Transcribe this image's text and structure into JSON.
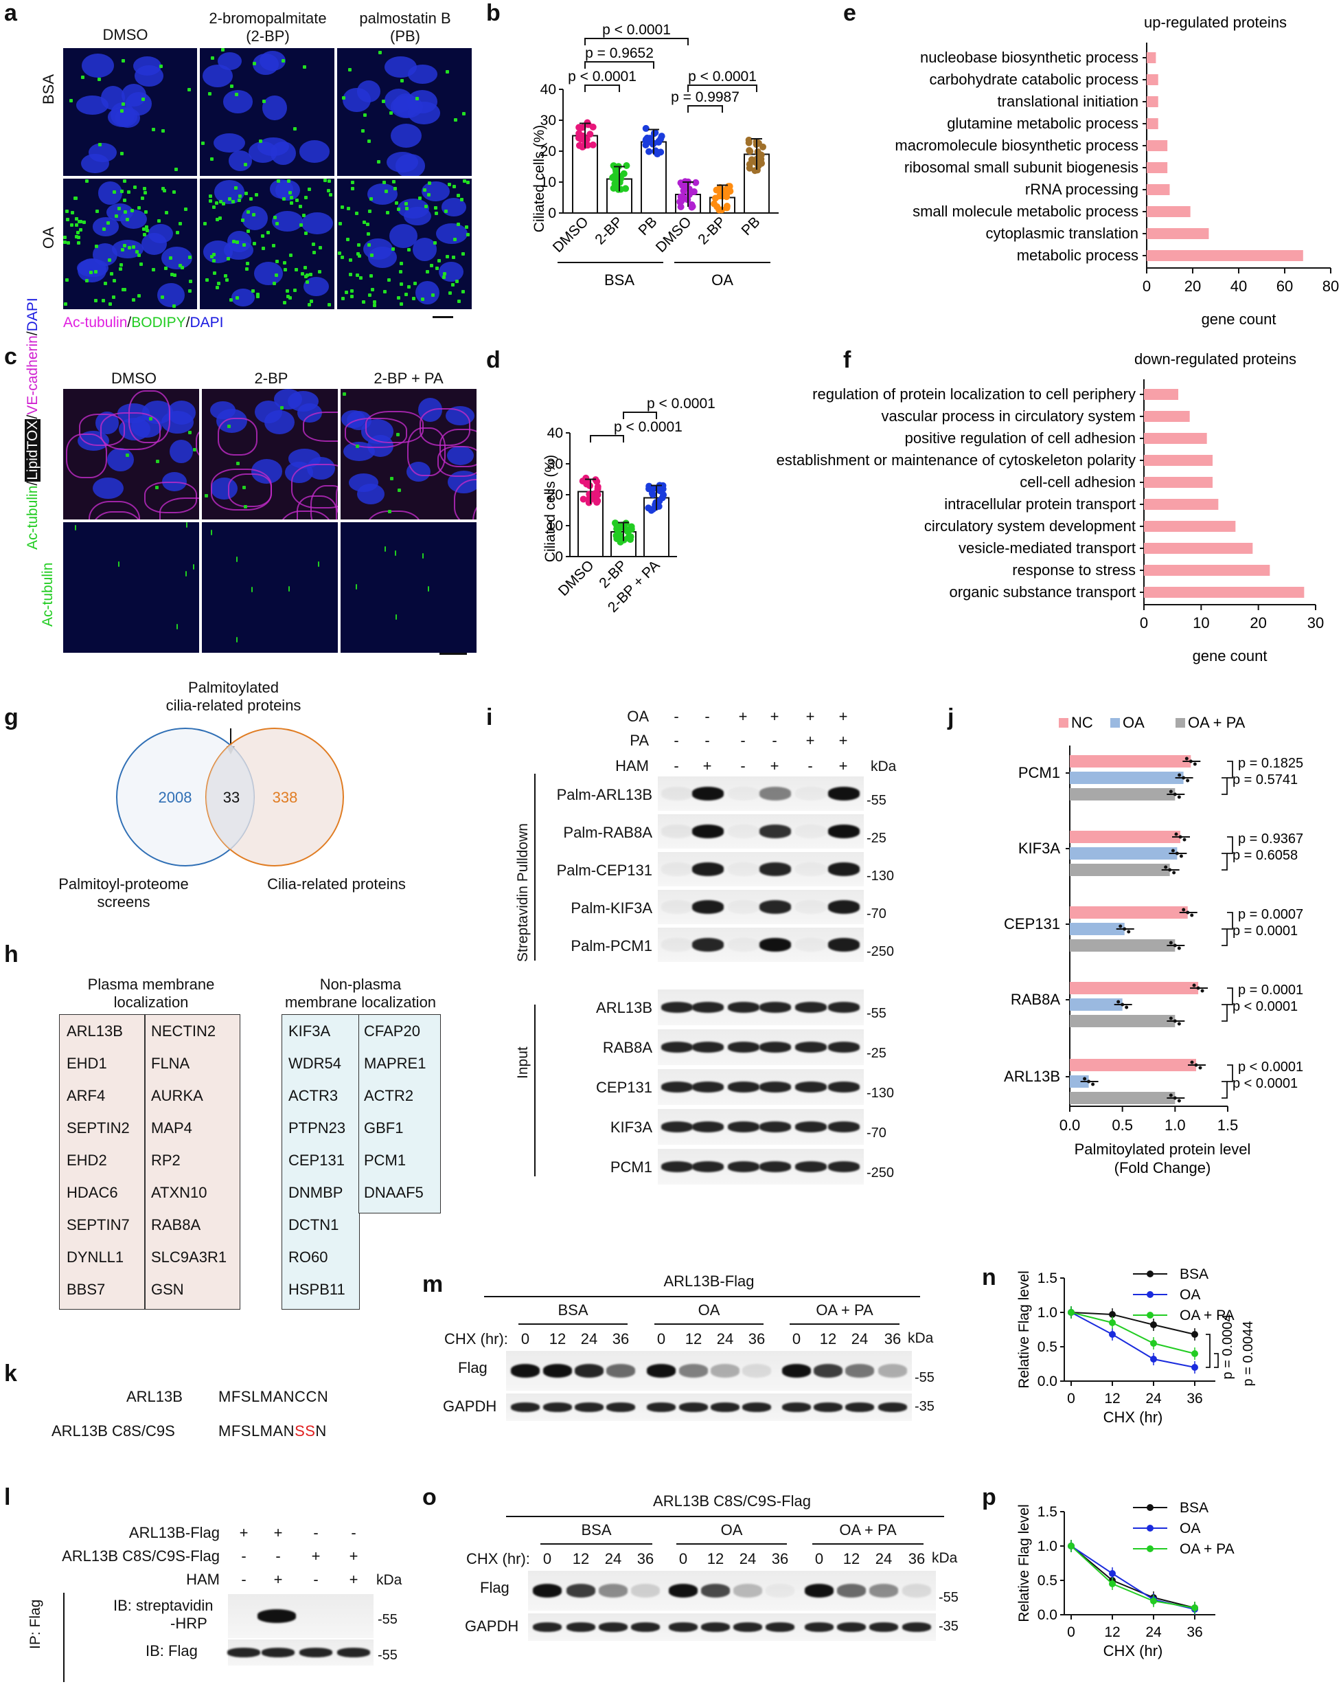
{
  "panel_a": {
    "letter": "a",
    "columns": [
      "DMSO",
      "2-bromopalmitate\n(2-BP)",
      "palmostatin B\n(PB)"
    ],
    "col1": "DMSO",
    "col2_l1": "2-bromopalmitate",
    "col2_l2": "(2-BP)",
    "col3_l1": "palmostatin B",
    "col3_l2": "(PB)",
    "rows": [
      "BSA",
      "OA"
    ],
    "legend_ac": "Ac-tubulin",
    "legend_slash1": "/",
    "legend_bodipy": "BODIPY",
    "legend_slash2": "/",
    "legend_dapi": "DAPI",
    "colors": {
      "ac": "#e020e0",
      "bodipy": "#22cc22",
      "dapi": "#1a1ae0"
    }
  },
  "panel_b": {
    "letter": "b",
    "ylabel": "Ciliated cells (%)",
    "yticks": [
      "0",
      "10",
      "20",
      "30",
      "40"
    ],
    "xcats": [
      "DMSO",
      "2-BP",
      "PB",
      "DMSO",
      "2-BP",
      "PB"
    ],
    "group1": "BSA",
    "group2": "OA",
    "p1": "p < 0.0001",
    "p2": "p = 0.9652",
    "p3": "p < 0.0001",
    "p4": "p < 0.0001",
    "p5": "p = 0.9987"
  },
  "panel_c": {
    "letter": "c",
    "columns": [
      "DMSO",
      "2-BP",
      "2-BP + PA"
    ],
    "row1_a": "Ac-tubulin",
    "row1_b": "/",
    "row1_c": "LipidTOX",
    "row1_d": "/",
    "row1_e": "VE-cadherin",
    "row1_f": "/",
    "row1_g": "DAPI",
    "row2": "Ac-tubulin"
  },
  "panel_d": {
    "letter": "d",
    "ylabel": "Ciliated cells (%)",
    "yticks": [
      "0",
      "10",
      "20",
      "30",
      "40"
    ],
    "xcats": [
      "DMSO",
      "2-BP",
      "2-BP + PA"
    ],
    "p1": "p < 0.0001",
    "p2": "p < 0.0001"
  },
  "panel_e": {
    "letter": "e",
    "title": "up-regulated proteins",
    "xlabel": "gene count",
    "xticks": [
      "0",
      "20",
      "40",
      "60",
      "80"
    ]
  },
  "panel_f": {
    "letter": "f",
    "title": "down-regulated proteins",
    "xlabel": "gene count",
    "xticks": [
      "0",
      "10",
      "20",
      "30"
    ]
  },
  "panel_g": {
    "letter": "g",
    "top_label_l1": "Palmitoylated",
    "top_label_l2": "cilia-related proteins",
    "left_count": "2008",
    "mid_count": "33",
    "right_count": "338",
    "left_label_l1": "Palmitoyl-proteome",
    "left_label_l2": "screens",
    "right_label": "Cilia-related proteins"
  },
  "panel_h": {
    "letter": "h",
    "pm_title_l1": "Plasma membrane",
    "pm_title_l2": "localization",
    "npm_title_l1": "Non-plasma",
    "npm_title_l2": "membrane localization",
    "pm_col1": [
      "ARL13B",
      "EHD1",
      "ARF4",
      "SEPTIN2",
      "EHD2",
      "HDAC6",
      "SEPTIN7",
      "DYNLL1",
      "BBS7"
    ],
    "pm_col2": [
      "NECTIN2",
      "FLNA",
      "AURKA",
      "MAP4",
      "RP2",
      "ATXN10",
      "RAB8A",
      "SLC9A3R1",
      "GSN"
    ],
    "npm_col1": [
      "KIF3A",
      "WDR54",
      "ACTR3",
      "PTPN23",
      "CEP131",
      "DNMBP",
      "DCTN1",
      "RO60",
      "HSPB11"
    ],
    "npm_col2": [
      "CFAP20",
      "MAPRE1",
      "ACTR2",
      "GBF1",
      "PCM1",
      "DNAAF5"
    ]
  },
  "panel_i": {
    "letter": "i",
    "cond_labels": [
      "OA",
      "PA",
      "HAM"
    ],
    "oa_signs": [
      "-",
      "-",
      "+",
      "+",
      "+",
      "+"
    ],
    "pa_signs": [
      "-",
      "-",
      "-",
      "-",
      "+",
      "+"
    ],
    "ham_signs": [
      "-",
      "+",
      "-",
      "+",
      "-",
      "+"
    ],
    "kda": "kDa",
    "pulldown_label": "Streptavidin Pulldown",
    "input_label": "Input",
    "pulldown_rows": [
      "Palm-ARL13B",
      "Palm-RAB8A",
      "Palm-CEP131",
      "Palm-KIF3A",
      "Palm-PCM1"
    ],
    "pulldown_mw": [
      "-55",
      "-25",
      "-130",
      "-70",
      "-250"
    ],
    "input_rows": [
      "ARL13B",
      "RAB8A",
      "CEP131",
      "KIF3A",
      "PCM1"
    ],
    "input_mw": [
      "-55",
      "-25",
      "-130",
      "-70",
      "-250"
    ]
  },
  "panel_j": {
    "letter": "j",
    "legend": [
      "NC",
      "OA",
      "OA + PA"
    ],
    "proteins": [
      "PCM1",
      "KIF3A",
      "CEP131",
      "RAB8A",
      "ARL13B"
    ],
    "pvals": [
      [
        "p = 0.1825",
        "p = 0.5741"
      ],
      [
        "p = 0.9367",
        "p = 0.6058"
      ],
      [
        "p = 0.0007",
        "p = 0.0001"
      ],
      [
        "p = 0.0001",
        "p < 0.0001"
      ],
      [
        "p < 0.0001",
        "p < 0.0001"
      ]
    ],
    "xticks": [
      "0.0",
      "0.5",
      "1.0",
      "1.5"
    ],
    "xlabel_l1": "Palmitoylated protein level",
    "xlabel_l2": "(Fold Change)",
    "colors": {
      "NC": "#f7a0a8",
      "OA": "#9ab9e0",
      "OA + PA": "#a8a8a8"
    }
  },
  "panel_k": {
    "letter": "k",
    "row1_name": "ARL13B",
    "row1_seq": "MFSLMANCCN",
    "row2_name": "ARL13B C8S/C9S",
    "row2_seq_a": "MFSLMAN",
    "row2_seq_b": "SS",
    "row2_seq_c": "N",
    "mut_color": "#e02020"
  },
  "panel_l": {
    "letter": "l",
    "rows": [
      "ARL13B-Flag",
      "ARL13B C8S/C9S-Flag",
      "HAM"
    ],
    "r1": [
      "+",
      "+",
      "-",
      "-"
    ],
    "r2": [
      "-",
      "-",
      "+",
      "+"
    ],
    "r3": [
      "-",
      "+",
      "-",
      "+"
    ],
    "kda": "kDa",
    "ip": "IP: Flag",
    "ib1_l1": "IB: streptavidin",
    "ib1_l2": "-HRP",
    "ib2": "IB: Flag",
    "mw1": "-55",
    "mw2": "-55"
  },
  "panel_m": {
    "letter": "m",
    "construct": "ARL13B-Flag",
    "groups": [
      "BSA",
      "OA",
      "OA + PA"
    ],
    "chx": "CHX (hr):",
    "times": [
      "0",
      "12",
      "24",
      "36",
      "0",
      "12",
      "24",
      "36",
      "0",
      "12",
      "24",
      "36"
    ],
    "kda": "kDa",
    "rows": [
      "Flag",
      "GAPDH"
    ],
    "mw": [
      "-55",
      "-35"
    ]
  },
  "panel_o": {
    "letter": "o",
    "construct": "ARL13B C8S/C9S-Flag",
    "groups": [
      "BSA",
      "OA",
      "OA + PA"
    ],
    "chx": "CHX (hr):",
    "times": [
      "0",
      "12",
      "24",
      "36",
      "0",
      "12",
      "24",
      "36",
      "0",
      "12",
      "24",
      "36"
    ],
    "kda": "kDa",
    "rows": [
      "Flag",
      "GAPDH"
    ],
    "mw": [
      "-55",
      "-35"
    ]
  },
  "panel_n": {
    "letter": "n",
    "ylabel": "Relative Flag level",
    "xlabel": "CHX (hr)",
    "yticks": [
      "0.0",
      "0.5",
      "1.0",
      "1.5"
    ],
    "xticks": [
      "0",
      "12",
      "24",
      "36"
    ],
    "legend": [
      "BSA",
      "OA",
      "OA + PA"
    ],
    "p1": "p = 0.0004",
    "p2": "p = 0.0044"
  },
  "panel_p": {
    "letter": "p",
    "ylabel": "Relative Flag level",
    "xlabel": "CHX (hr)",
    "yticks": [
      "0.0",
      "0.5",
      "1.0",
      "1.5"
    ],
    "xticks": [
      "0",
      "12",
      "24",
      "36"
    ],
    "legend": [
      "BSA",
      "OA",
      "OA + PA"
    ]
  },
  "chart_data": [
    {
      "type": "bar",
      "panel": "b",
      "ylabel": "Ciliated cells (%)",
      "ylim": [
        0,
        40
      ],
      "categories": [
        "BSA DMSO",
        "BSA 2-BP",
        "BSA PB",
        "OA DMSO",
        "OA 2-BP",
        "OA PB"
      ],
      "values": [
        25,
        11,
        23,
        6,
        5,
        19
      ],
      "errors": [
        4,
        4,
        4,
        4,
        4,
        5
      ],
      "colors": [
        "#e8157a",
        "#22cc22",
        "#1a3cdd",
        "#b020d0",
        "#ff8c10",
        "#a0702a"
      ]
    },
    {
      "type": "bar",
      "panel": "d",
      "ylabel": "Ciliated cells (%)",
      "ylim": [
        0,
        40
      ],
      "categories": [
        "DMSO",
        "2-BP",
        "2-BP + PA"
      ],
      "values": [
        21,
        8,
        19
      ],
      "errors": [
        4,
        3,
        4
      ],
      "colors": [
        "#e8157a",
        "#22cc22",
        "#1a3cdd"
      ]
    },
    {
      "type": "bar",
      "orientation": "horizontal",
      "panel": "e",
      "title": "up-regulated proteins",
      "xlabel": "gene count",
      "xlim": [
        0,
        80
      ],
      "categories": [
        "nucleobase biosynthetic process",
        "carbohydrate catabolic process",
        "translational initiation",
        "glutamine metabolic process",
        "macromolecule biosynthetic process",
        "ribosomal small subunit biogenesis",
        "rRNA processing",
        "small molecule metabolic process",
        "cytoplasmic translation",
        "metabolic process"
      ],
      "values": [
        4,
        5,
        5,
        5,
        9,
        9,
        10,
        19,
        27,
        68
      ],
      "color": "#f7a0a8"
    },
    {
      "type": "bar",
      "orientation": "horizontal",
      "panel": "f",
      "title": "down-regulated proteins",
      "xlabel": "gene count",
      "xlim": [
        0,
        30
      ],
      "categories": [
        "regulation of protein localization to cell periphery",
        "vascular process in circulatory system",
        "positive regulation of cell adhesion",
        "establishment or maintenance of cytoskeleton polarity",
        "cell-cell adhesion",
        "intracellular protein transport",
        "circulatory system development",
        "vesicle-mediated transport",
        "response to stress",
        "organic substance transport"
      ],
      "values": [
        6,
        8,
        11,
        12,
        12,
        13,
        16,
        19,
        22,
        28
      ],
      "color": "#f7a0a8"
    },
    {
      "type": "bar",
      "orientation": "horizontal",
      "panel": "j",
      "xlabel": "Palmitoylated protein level (Fold Change)",
      "xlim": [
        0,
        1.5
      ],
      "categories": [
        "PCM1",
        "KIF3A",
        "CEP131",
        "RAB8A",
        "ARL13B"
      ],
      "series": [
        {
          "name": "NC",
          "values": [
            1.15,
            1.05,
            1.12,
            1.22,
            1.2
          ]
        },
        {
          "name": "OA",
          "values": [
            1.08,
            1.02,
            0.52,
            0.5,
            0.18
          ]
        },
        {
          "name": "OA + PA",
          "values": [
            1.0,
            0.95,
            1.0,
            1.0,
            1.0
          ]
        }
      ]
    },
    {
      "type": "line",
      "panel": "n",
      "xlabel": "CHX (hr)",
      "ylabel": "Relative Flag level",
      "x": [
        0,
        12,
        24,
        36
      ],
      "ylim": [
        0,
        1.5
      ],
      "series": [
        {
          "name": "BSA",
          "values": [
            1.0,
            0.97,
            0.82,
            0.68
          ],
          "color": "#111111"
        },
        {
          "name": "OA",
          "values": [
            1.0,
            0.68,
            0.32,
            0.2
          ],
          "color": "#1a2bdd"
        },
        {
          "name": "OA + PA",
          "values": [
            1.0,
            0.85,
            0.55,
            0.4
          ],
          "color": "#22cc22"
        }
      ]
    },
    {
      "type": "line",
      "panel": "p",
      "xlabel": "CHX (hr)",
      "ylabel": "Relative Flag level",
      "x": [
        0,
        12,
        24,
        36
      ],
      "ylim": [
        0,
        1.5
      ],
      "series": [
        {
          "name": "BSA",
          "values": [
            1.0,
            0.5,
            0.25,
            0.1
          ],
          "color": "#111111"
        },
        {
          "name": "OA",
          "values": [
            1.0,
            0.6,
            0.22,
            0.08
          ],
          "color": "#1a2bdd"
        },
        {
          "name": "OA + PA",
          "values": [
            1.0,
            0.45,
            0.2,
            0.1
          ],
          "color": "#22cc22"
        }
      ]
    }
  ]
}
